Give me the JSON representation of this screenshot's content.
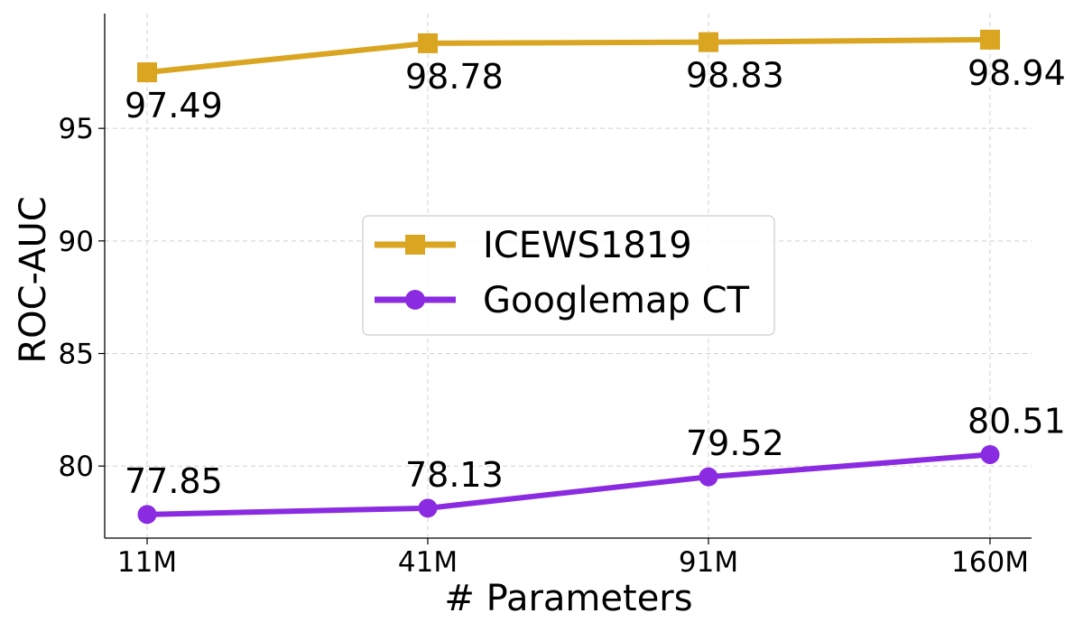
{
  "chart_data": {
    "type": "line",
    "categories": [
      "11M",
      "41M",
      "91M",
      "160M"
    ],
    "xlabel": "# Parameters",
    "ylabel": "ROC-AUC",
    "ylim": [
      76.8,
      100.1
    ],
    "yticks": [
      80,
      85,
      90,
      95
    ],
    "grid": true,
    "legend_position": "center",
    "series": [
      {
        "name": "ICEWS1819",
        "values": [
          97.49,
          98.78,
          98.83,
          98.94
        ],
        "labels": [
          "97.49",
          "98.78",
          "98.83",
          "98.94"
        ],
        "color": "#DAA520",
        "marker": "square",
        "label_position": "below"
      },
      {
        "name": "Googlemap CT",
        "values": [
          77.85,
          78.13,
          79.52,
          80.51
        ],
        "labels": [
          "77.85",
          "78.13",
          "79.52",
          "80.51"
        ],
        "color": "#8A2BE2",
        "marker": "circle",
        "label_position": "above"
      }
    ]
  }
}
